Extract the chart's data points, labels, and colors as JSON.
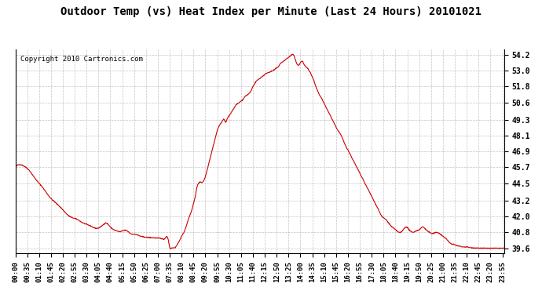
{
  "title": "Outdoor Temp (vs) Heat Index per Minute (Last 24 Hours) 20101021",
  "copyright": "Copyright 2010 Cartronics.com",
  "line_color": "#cc0000",
  "background_color": "#ffffff",
  "plot_background": "#ffffff",
  "grid_color": "#aaaaaa",
  "yticks": [
    39.6,
    40.8,
    42.0,
    43.2,
    44.5,
    45.7,
    46.9,
    48.1,
    49.3,
    50.6,
    51.8,
    53.0,
    54.2
  ],
  "ylim": [
    39.2,
    54.6
  ],
  "xtick_labels": [
    "00:00",
    "00:35",
    "01:10",
    "01:45",
    "02:20",
    "02:55",
    "03:30",
    "04:05",
    "04:40",
    "05:15",
    "05:50",
    "06:25",
    "07:00",
    "07:35",
    "08:10",
    "08:45",
    "09:20",
    "09:55",
    "10:30",
    "11:05",
    "11:40",
    "12:15",
    "12:50",
    "13:25",
    "14:00",
    "14:35",
    "15:10",
    "15:45",
    "16:20",
    "16:55",
    "17:30",
    "18:05",
    "18:40",
    "19:15",
    "19:50",
    "20:25",
    "21:00",
    "21:35",
    "22:10",
    "22:45",
    "23:20",
    "23:55"
  ],
  "figsize": [
    6.9,
    3.75
  ],
  "dpi": 100
}
